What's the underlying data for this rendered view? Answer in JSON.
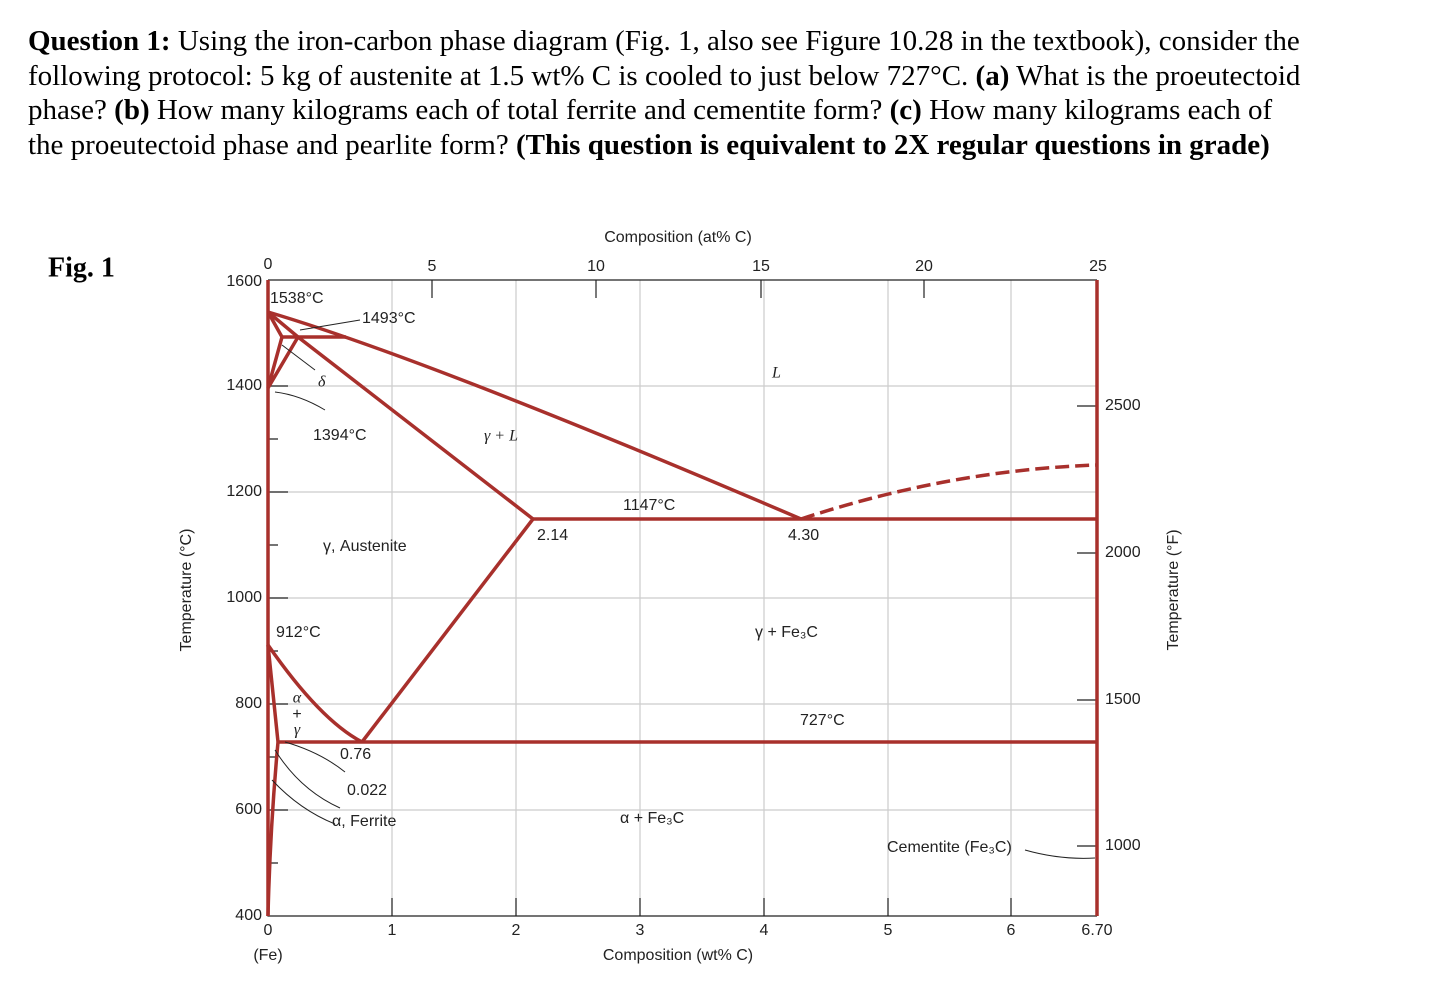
{
  "question": {
    "segments": [
      "Question 1:",
      "Using the iron-carbon phase diagram (Fig. 1, also see Figure 10.28 in the textbook), consider the following protocol: 5 kg of austenite at 1.5 wt% C is cooled to just below 727°C.",
      "(a)",
      "What is the proeutectoid phase?",
      "(b)",
      "How many kilograms each of total ferrite and cementite form?",
      "(c)",
      "How many kilograms each of the proeutectoid phase and pearlite form?",
      "(This question is equivalent to 2X regular questions in grade)"
    ]
  },
  "figure": {
    "label": "Fig. 1",
    "top_axis_title": "Composition (at% C)",
    "top_ticks": [
      0,
      5,
      10,
      15,
      20,
      25
    ],
    "bottom_axis_title": "Composition (wt% C)",
    "bottom_ticks": [
      0,
      1,
      2,
      3,
      4,
      5,
      6,
      "6.70"
    ],
    "bottom_note": "(Fe)",
    "left_axis_title": "Temperature (°C)",
    "left_ticks": [
      1600,
      1400,
      1200,
      1000,
      800,
      600,
      400
    ],
    "right_axis_title": "Temperature (°F)",
    "right_ticks": [
      2500,
      2000,
      1500,
      1000
    ],
    "annotations": [
      "1538°C",
      "1493°C",
      "δ",
      "1394°C",
      "γ + L",
      "L",
      "1147°C",
      "2.14",
      "4.30",
      "γ, Austenite",
      "912°C",
      "γ + Fe₃C",
      "727°C",
      "0.76",
      "0.022",
      "α, Ferrite",
      "α + Fe₃C",
      "Cementite (Fe₃C)"
    ],
    "alpha_gamma": [
      "α",
      "+",
      "γ"
    ]
  }
}
